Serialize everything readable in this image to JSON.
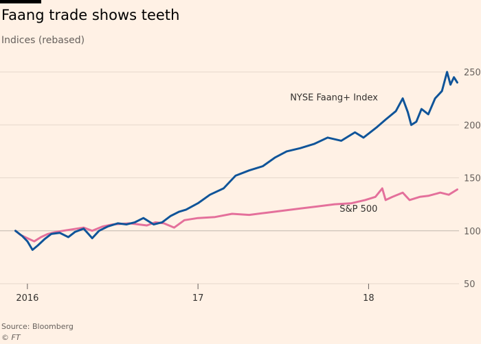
{
  "header": {
    "title": "Faang trade shows teeth",
    "subtitle": "Indices (rebased)"
  },
  "footer": {
    "source": "Source: Bloomberg",
    "credit": "© FT"
  },
  "colors": {
    "background": "#fff1e5",
    "faang": "#0f5499",
    "sp500": "#e4709b",
    "grid": "#e5d8cc",
    "baseline": "#ccc1b7",
    "axis_text": "#66605c"
  },
  "chart_data": {
    "type": "line",
    "x_unit": "years",
    "xlim": [
      2015.92,
      2018.53
    ],
    "ylim": [
      50,
      250
    ],
    "y_ticks": [
      50,
      100,
      150,
      200,
      250
    ],
    "y_axis_side": "right",
    "grid": "horizontal",
    "baseline": 100,
    "x_ticks": [
      {
        "value": 2016.0,
        "label": "2016"
      },
      {
        "value": 2017.0,
        "label": "17"
      },
      {
        "value": 2018.0,
        "label": "18"
      }
    ],
    "series": [
      {
        "name": "NYSE Faang+ Index",
        "color": "#0f5499",
        "label_at": [
          2017.54,
          223
        ],
        "x": [
          2015.93,
          2015.97,
          2016.0,
          2016.03,
          2016.06,
          2016.1,
          2016.14,
          2016.19,
          2016.24,
          2016.28,
          2016.33,
          2016.38,
          2016.42,
          2016.47,
          2016.53,
          2016.58,
          2016.63,
          2016.68,
          2016.74,
          2016.79,
          2016.84,
          2016.89,
          2016.93,
          2017.0,
          2017.07,
          2017.15,
          2017.22,
          2017.3,
          2017.38,
          2017.45,
          2017.52,
          2017.6,
          2017.68,
          2017.76,
          2017.84,
          2017.92,
          2017.97,
          2018.05,
          2018.1,
          2018.16,
          2018.2,
          2018.23,
          2018.25,
          2018.28,
          2018.31,
          2018.35,
          2018.39,
          2018.43,
          2018.46,
          2018.48,
          2018.5,
          2018.52
        ],
        "y": [
          100,
          95,
          90,
          82,
          86,
          92,
          97,
          98,
          94,
          99,
          102,
          93,
          100,
          104,
          107,
          106,
          108,
          112,
          106,
          108,
          114,
          118,
          120,
          126,
          134,
          140,
          152,
          157,
          161,
          169,
          175,
          178,
          182,
          188,
          185,
          193,
          188,
          198,
          205,
          213,
          225,
          212,
          200,
          203,
          215,
          210,
          225,
          232,
          250,
          238,
          245,
          240
        ]
      },
      {
        "name": "S&P 500",
        "color": "#e4709b",
        "label_at": [
          2017.83,
          118
        ],
        "x": [
          2015.93,
          2015.96,
          2016.0,
          2016.04,
          2016.08,
          2016.12,
          2016.17,
          2016.25,
          2016.33,
          2016.38,
          2016.44,
          2016.5,
          2016.6,
          2016.7,
          2016.75,
          2016.8,
          2016.86,
          2016.92,
          2017.0,
          2017.1,
          2017.2,
          2017.3,
          2017.4,
          2017.5,
          2017.6,
          2017.7,
          2017.8,
          2017.9,
          2017.98,
          2018.04,
          2018.08,
          2018.1,
          2018.14,
          2018.2,
          2018.24,
          2018.3,
          2018.35,
          2018.42,
          2018.47,
          2018.52
        ],
        "y": [
          100,
          96,
          93,
          90,
          94,
          97,
          99,
          101,
          103,
          100,
          104,
          106,
          107,
          105,
          108,
          107,
          103,
          110,
          112,
          113,
          116,
          115,
          117,
          119,
          121,
          123,
          125,
          126,
          129,
          132,
          140,
          129,
          132,
          136,
          129,
          132,
          133,
          136,
          134,
          139
        ]
      }
    ]
  }
}
